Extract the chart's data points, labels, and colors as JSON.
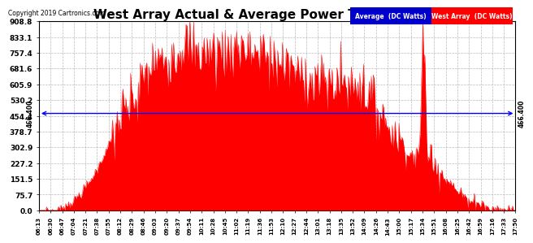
{
  "title": "West Array Actual & Average Power Thu Mar 7 17:54",
  "copyright": "Copyright 2019 Cartronics.com",
  "y_max": 908.8,
  "y_min": 0.0,
  "y_ticks": [
    0.0,
    75.7,
    151.5,
    227.2,
    302.9,
    378.7,
    454.4,
    530.2,
    605.9,
    681.6,
    757.4,
    833.1,
    908.8
  ],
  "avg_line_value": 466.4,
  "avg_line_label": "466.400",
  "fill_color": "#FF0000",
  "line_color": "#FF0000",
  "avg_line_color": "#0000FF",
  "background_color": "#FFFFFF",
  "plot_bg_color": "#FFFFFF",
  "grid_color": "#AAAAAA",
  "legend_avg_bg": "#0000CC",
  "legend_avg_text": "Average  (DC Watts)",
  "legend_west_bg": "#FF0000",
  "legend_west_text": "West Array  (DC Watts)",
  "x_labels": [
    "06:13",
    "06:30",
    "06:47",
    "07:04",
    "07:21",
    "07:38",
    "07:55",
    "08:12",
    "08:29",
    "08:46",
    "09:03",
    "09:20",
    "09:37",
    "09:54",
    "10:11",
    "10:28",
    "10:45",
    "11:02",
    "11:19",
    "11:36",
    "11:53",
    "12:10",
    "12:27",
    "12:44",
    "13:01",
    "13:18",
    "13:35",
    "13:52",
    "14:09",
    "14:26",
    "14:43",
    "15:00",
    "15:17",
    "15:34",
    "15:51",
    "16:08",
    "16:25",
    "16:42",
    "16:59",
    "17:16",
    "17:33",
    "17:50"
  ]
}
